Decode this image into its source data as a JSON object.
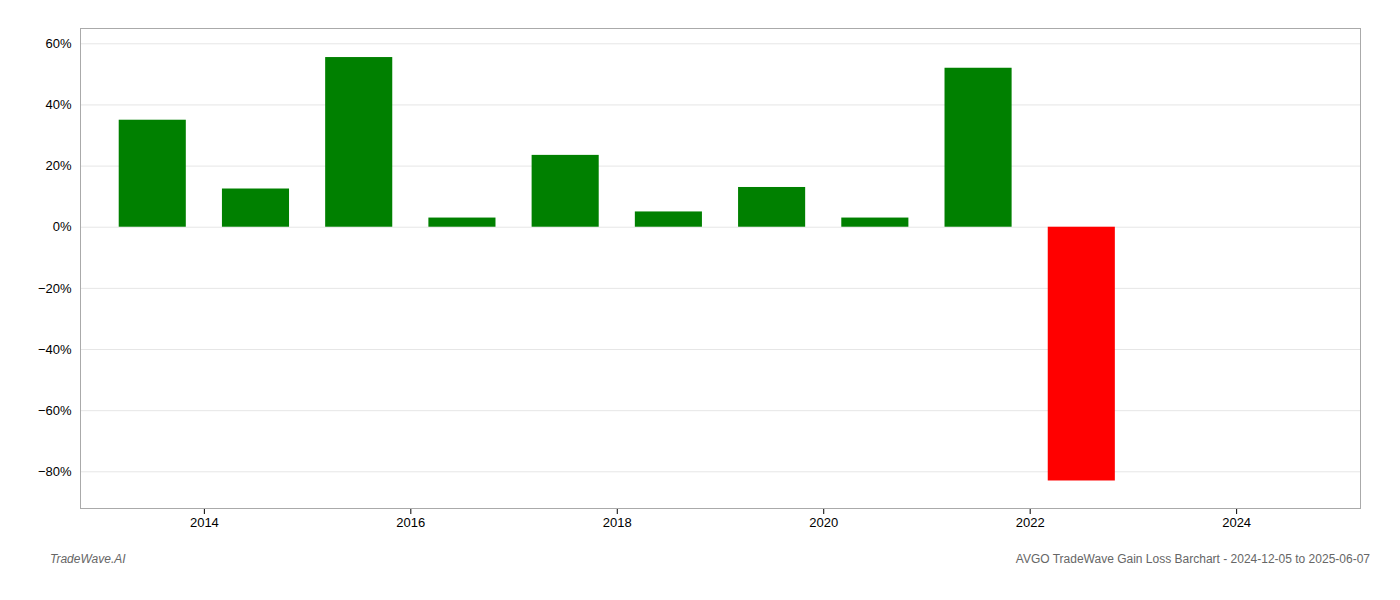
{
  "chart_data": {
    "type": "bar",
    "x": [
      2013.5,
      2014.5,
      2015.5,
      2016.5,
      2017.5,
      2018.5,
      2019.5,
      2020.5,
      2021.5,
      2022.5
    ],
    "values": [
      35.0,
      12.5,
      55.5,
      3.0,
      23.5,
      5.0,
      13.0,
      3.0,
      52.0,
      -83.0
    ],
    "colors": [
      "#008000",
      "#008000",
      "#008000",
      "#008000",
      "#008000",
      "#008000",
      "#008000",
      "#008000",
      "#008000",
      "#ff0000"
    ],
    "xlim": [
      2012.8,
      2025.2
    ],
    "xticks": [
      2014,
      2016,
      2018,
      2020,
      2022,
      2024
    ],
    "ylim": [
      -92,
      65
    ],
    "yticks": [
      {
        "value": -80,
        "label": "−80%"
      },
      {
        "value": -60,
        "label": "−60%"
      },
      {
        "value": -40,
        "label": "−40%"
      },
      {
        "value": -20,
        "label": "−20%"
      },
      {
        "value": 0,
        "label": "0%"
      },
      {
        "value": 20,
        "label": "20%"
      },
      {
        "value": 40,
        "label": "40%"
      },
      {
        "value": 60,
        "label": "60%"
      }
    ],
    "grid": true,
    "annotations": [
      "TradeWave.AI",
      "AVGO TradeWave Gain Loss Barchart - 2024-12-05 to 2025-06-07"
    ]
  }
}
